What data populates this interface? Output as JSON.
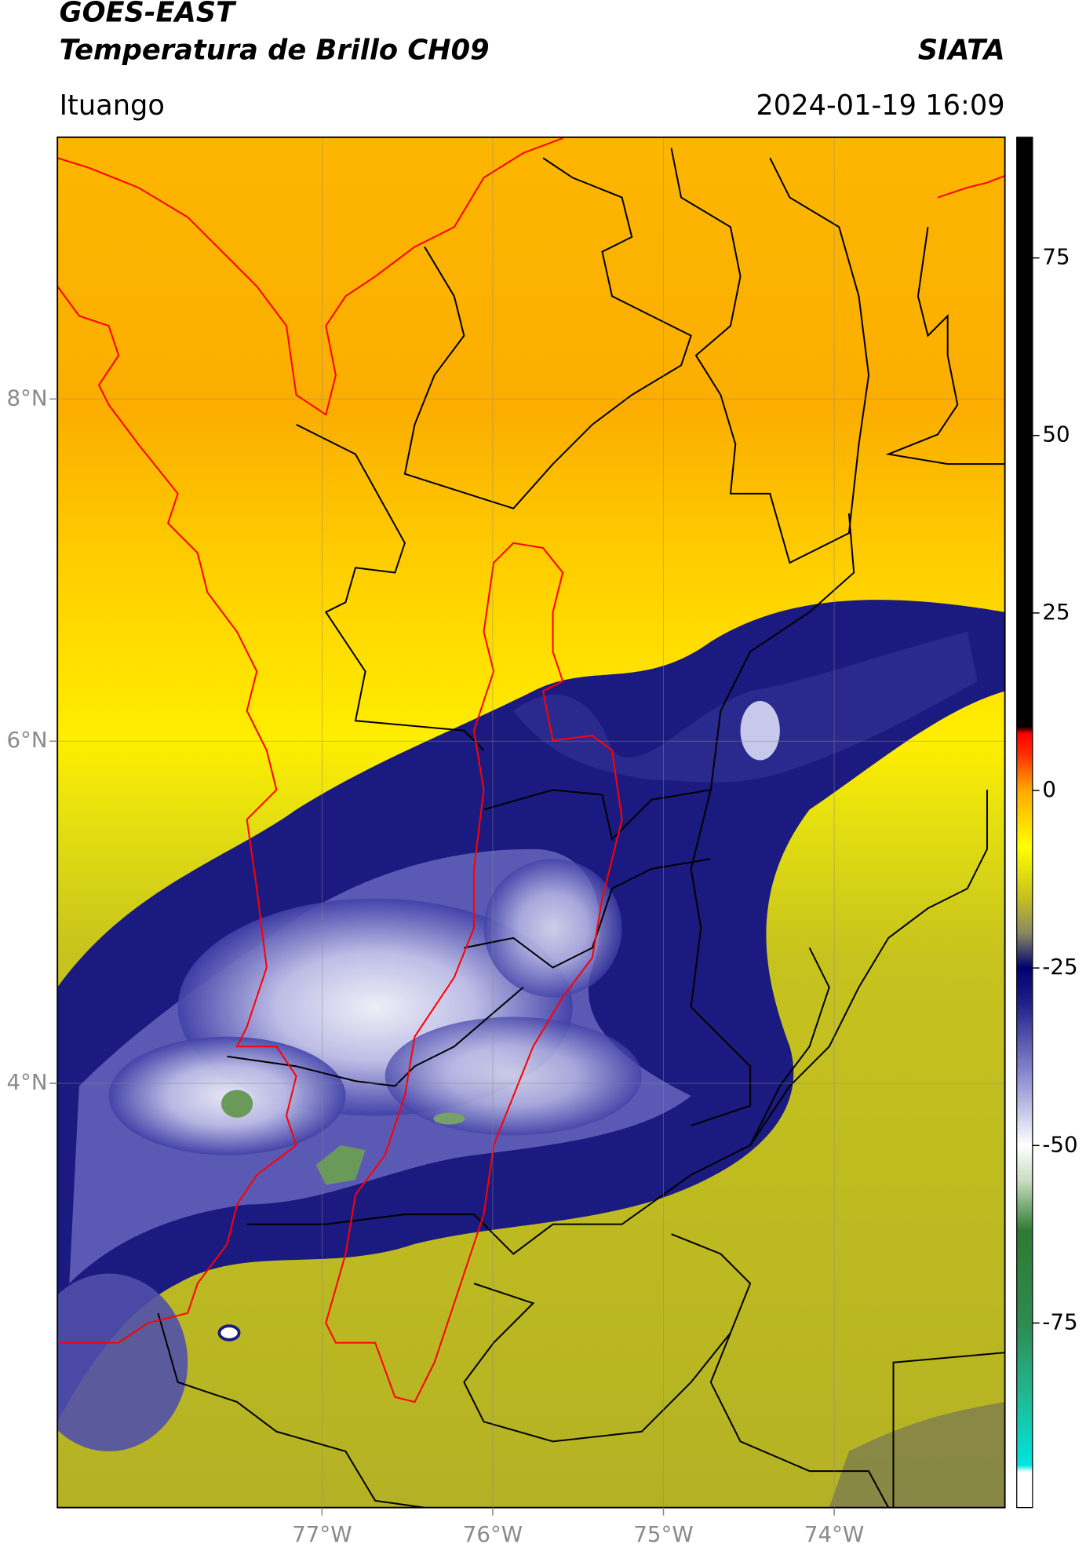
{
  "header": {
    "title": "GOES-EAST",
    "subtitle": "Temperatura de Brillo CH09",
    "agency": "SIATA",
    "location": "Ituango",
    "datetime": "2024-01-19 16:09"
  },
  "map": {
    "xlim": [
      -78.55,
      -73.0
    ],
    "ylim": [
      1.52,
      9.53
    ],
    "xticks": [
      {
        "value": -77,
        "label": "77°W"
      },
      {
        "value": -76,
        "label": "76°W"
      },
      {
        "value": -75,
        "label": "75°W"
      },
      {
        "value": -74,
        "label": "74°W"
      }
    ],
    "yticks": [
      {
        "value": 8,
        "label": "8°N"
      },
      {
        "value": 6,
        "label": "6°N"
      },
      {
        "value": 4,
        "label": "4°N"
      }
    ],
    "grid": true
  },
  "colorbar": {
    "lim": [
      -101,
      92
    ],
    "ticks": [
      75,
      50,
      25,
      0,
      -25,
      -50,
      -75
    ],
    "stops": [
      [
        -101,
        "#ffffff"
      ],
      [
        -96,
        "#ffffff"
      ],
      [
        -95,
        "#00e5e0"
      ],
      [
        -85,
        "#20b890"
      ],
      [
        -75,
        "#2f8a50"
      ],
      [
        -62,
        "#2e7a32"
      ],
      [
        -55,
        "#c8dcc0"
      ],
      [
        -50,
        "#ffffff"
      ],
      [
        -40,
        "#8a8ad0"
      ],
      [
        -30,
        "#20208a"
      ],
      [
        -25,
        "#000070"
      ],
      [
        -20,
        "#8a8a60"
      ],
      [
        -15,
        "#c8c020"
      ],
      [
        -8,
        "#ffff00"
      ],
      [
        0,
        "#ffaa00"
      ],
      [
        5,
        "#ff3000"
      ],
      [
        8,
        "#ff0000"
      ],
      [
        9,
        "#000000"
      ],
      [
        92,
        "#000000"
      ]
    ]
  }
}
